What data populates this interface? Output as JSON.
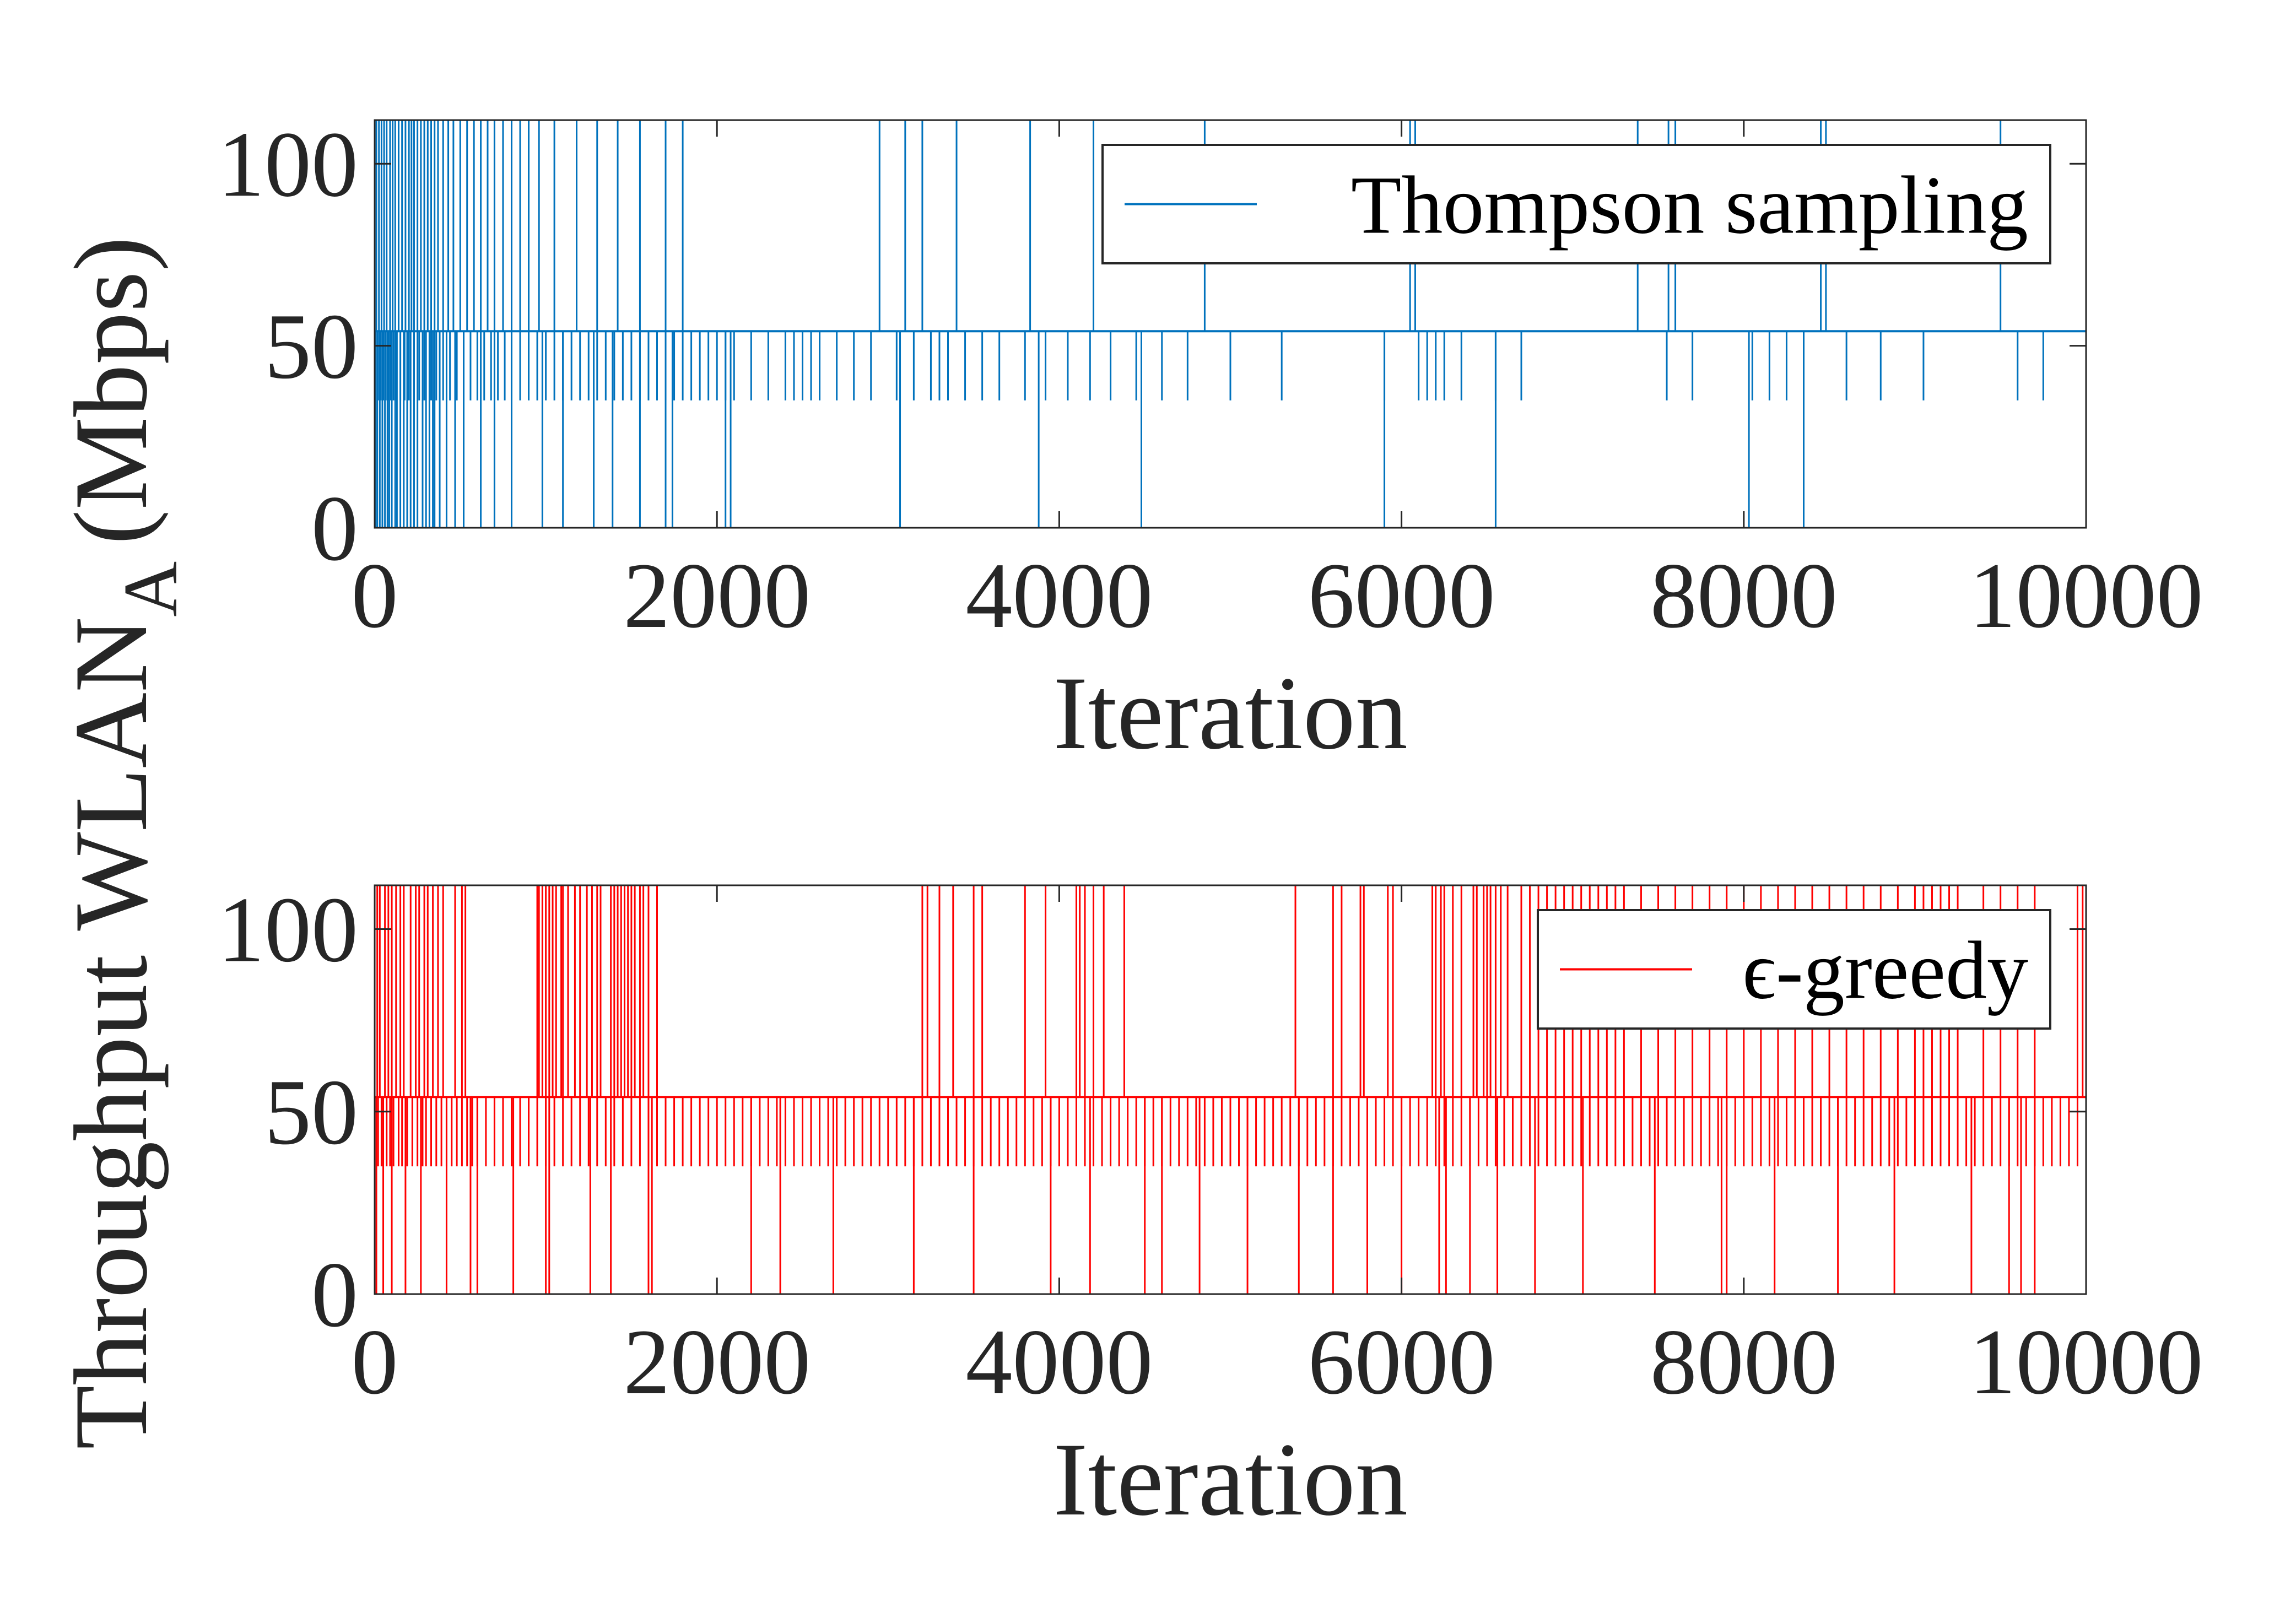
{
  "ylabel_main": "Throughput WLAN",
  "ylabel_sub": "A",
  "ylabel_unit": "(Mbps)",
  "chart_data": [
    {
      "type": "line",
      "title": "",
      "xlabel": "Iteration",
      "ylabel": "Throughput WLAN_A (Mbps)",
      "xlim": [
        0,
        10000
      ],
      "ylim": [
        0,
        112
      ],
      "xticks": [
        "0",
        "2000",
        "4000",
        "6000",
        "8000",
        "10000"
      ],
      "yticks": [
        "0",
        "50",
        "100"
      ],
      "legend": "Thompson sampling",
      "legend_position": "top-right",
      "color": "#0072BD",
      "baseline": 54,
      "levels": [
        112,
        54,
        35,
        0
      ],
      "spikes_high": [
        10,
        25,
        40,
        55,
        70,
        90,
        105,
        120,
        140,
        160,
        180,
        200,
        215,
        230,
        250,
        270,
        290,
        310,
        330,
        350,
        370,
        400,
        430,
        460,
        500,
        540,
        580,
        620,
        660,
        700,
        750,
        800,
        850,
        900,
        960,
        1050,
        1180,
        1300,
        1420,
        1550,
        1700,
        1800,
        2950,
        3100,
        3200,
        3400,
        3830,
        4200,
        4850,
        6050,
        6080,
        7380,
        7560,
        7600,
        8450,
        8480,
        9500
      ],
      "spikes_mid": [
        20,
        35,
        50,
        65,
        80,
        95,
        110,
        125,
        150,
        175,
        200,
        230,
        260,
        290,
        330,
        360,
        400,
        440,
        480,
        520,
        560,
        600,
        640,
        680,
        720,
        760,
        800,
        850,
        900,
        950,
        1000,
        1050,
        1100,
        1150,
        1200,
        1250,
        1300,
        1350,
        1400,
        1450,
        1500,
        1550,
        1600,
        1650,
        1700,
        1750,
        1800,
        1850,
        1900,
        1950,
        2000,
        2050,
        2100,
        2200,
        2300,
        2400,
        2450,
        2500,
        2550,
        2600,
        2700,
        2800,
        2900,
        3050,
        3150,
        3250,
        3300,
        3350,
        3450,
        3550,
        3650,
        3800,
        3920,
        4050,
        4180,
        4300,
        4450,
        4600,
        4750,
        5000,
        5300,
        5900,
        6100,
        6150,
        6200,
        6250,
        6350,
        6550,
        6700,
        7550,
        7700,
        8050,
        8150,
        8250,
        8350,
        8600,
        8800,
        9050,
        9600,
        9750
      ],
      "spikes_low": [
        5,
        15,
        30,
        45,
        60,
        75,
        85,
        100,
        120,
        130,
        150,
        170,
        190,
        210,
        230,
        250,
        280,
        300,
        320,
        340,
        350,
        380,
        420,
        470,
        520,
        620,
        700,
        800,
        980,
        1100,
        1280,
        1390,
        1550,
        1700,
        1740,
        2050,
        2080,
        3070,
        3880,
        4480,
        5900,
        6550,
        8030,
        8350
      ]
    },
    {
      "type": "line",
      "title": "",
      "xlabel": "Iteration",
      "ylabel": "Throughput WLAN_A (Mbps)",
      "xlim": [
        0,
        10000
      ],
      "ylim": [
        0,
        112
      ],
      "xticks": [
        "0",
        "2000",
        "4000",
        "6000",
        "8000",
        "10000"
      ],
      "yticks": [
        "0",
        "50",
        "100"
      ],
      "legend": "ϵ-greedy",
      "legend_position": "top-right",
      "color": "#FF0000",
      "baseline": 54,
      "levels": [
        112,
        54,
        35,
        0
      ],
      "spikes_high": [
        15,
        30,
        60,
        80,
        100,
        125,
        150,
        170,
        210,
        240,
        260,
        290,
        310,
        340,
        370,
        400,
        470,
        510,
        530,
        950,
        960,
        980,
        1000,
        1020,
        1040,
        1060,
        1090,
        1100,
        1130,
        1170,
        1200,
        1240,
        1270,
        1300,
        1320,
        1380,
        1400,
        1420,
        1440,
        1460,
        1480,
        1500,
        1520,
        1550,
        1570,
        1600,
        1650,
        3200,
        3230,
        3300,
        3380,
        3500,
        3550,
        3800,
        3920,
        4100,
        4120,
        4150,
        4200,
        4260,
        4380,
        5380,
        5600,
        5650,
        5760,
        5780,
        5920,
        5950,
        6180,
        6200,
        6230,
        6250,
        6300,
        6350,
        6420,
        6440,
        6480,
        6500,
        6520,
        6550,
        6580,
        6620,
        6700,
        6750,
        6800,
        6850,
        6900,
        6950,
        7000,
        7050,
        7100,
        7150,
        7200,
        7250,
        7300,
        7400,
        7500,
        7600,
        7700,
        7800,
        7900,
        8000,
        8100,
        8200,
        8300,
        8400,
        8500,
        8600,
        8700,
        8800,
        8900,
        9000,
        9050,
        9100,
        9150,
        9200,
        9250,
        9400,
        9500,
        9600,
        9700,
        9950,
        9980
      ],
      "spikes_mid": [
        20,
        40,
        70,
        90,
        110,
        140,
        160,
        190,
        220,
        250,
        280,
        300,
        330,
        360,
        390,
        420,
        450,
        480,
        510,
        540,
        570,
        600,
        650,
        700,
        750,
        800,
        850,
        900,
        950,
        1000,
        1050,
        1100,
        1150,
        1200,
        1250,
        1300,
        1350,
        1400,
        1450,
        1500,
        1550,
        1600,
        1650,
        1700,
        1750,
        1800,
        1850,
        1900,
        1950,
        2000,
        2050,
        2100,
        2150,
        2200,
        2250,
        2300,
        2350,
        2400,
        2450,
        2500,
        2550,
        2600,
        2650,
        2700,
        2750,
        2800,
        2850,
        2900,
        2950,
        3000,
        3050,
        3100,
        3150,
        3200,
        3250,
        3300,
        3350,
        3400,
        3450,
        3500,
        3550,
        3600,
        3650,
        3700,
        3750,
        3800,
        3850,
        3900,
        3950,
        4000,
        4050,
        4100,
        4150,
        4200,
        4250,
        4300,
        4350,
        4400,
        4450,
        4500,
        4550,
        4600,
        4650,
        4700,
        4750,
        4800,
        4850,
        4900,
        4950,
        5000,
        5050,
        5100,
        5150,
        5200,
        5250,
        5300,
        5350,
        5400,
        5450,
        5500,
        5550,
        5600,
        5650,
        5700,
        5750,
        5800,
        5850,
        5900,
        5950,
        6000,
        6050,
        6100,
        6150,
        6200,
        6250,
        6300,
        6350,
        6400,
        6450,
        6500,
        6550,
        6600,
        6650,
        6700,
        6750,
        6800,
        6850,
        6900,
        6950,
        7000,
        7050,
        7100,
        7150,
        7200,
        7250,
        7300,
        7350,
        7400,
        7450,
        7500,
        7550,
        7600,
        7650,
        7700,
        7750,
        7800,
        7850,
        7900,
        7950,
        8000,
        8050,
        8100,
        8150,
        8200,
        8250,
        8300,
        8350,
        8400,
        8450,
        8500,
        8550,
        8600,
        8650,
        8700,
        8750,
        8800,
        8850,
        8900,
        8950,
        9000,
        9050,
        9100,
        9150,
        9200,
        9250,
        9300,
        9350,
        9400,
        9450,
        9500,
        9550,
        9600,
        9650,
        9700,
        9750,
        9800,
        9850,
        9900,
        9950
      ],
      "spikes_low": [
        10,
        50,
        100,
        180,
        270,
        420,
        560,
        600,
        810,
        1000,
        1020,
        1260,
        1380,
        1600,
        1620,
        2200,
        2370,
        2680,
        3150,
        3500,
        3950,
        4180,
        4500,
        4600,
        4820,
        5100,
        5400,
        5600,
        5800,
        6000,
        6220,
        6260,
        6400,
        6560,
        6780,
        7060,
        7480,
        7870,
        7900,
        8180,
        8550,
        8880,
        9330,
        9550,
        9620,
        9700
      ]
    }
  ]
}
